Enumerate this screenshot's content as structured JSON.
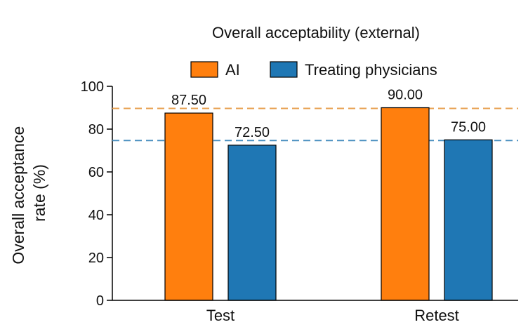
{
  "chart_data": {
    "type": "bar",
    "title": "Overall acceptability (external)",
    "categories": [
      "Test",
      "Retest"
    ],
    "series": [
      {
        "name": "AI",
        "values": [
          87.5,
          90.0
        ],
        "labels": [
          "87.50",
          "90.00"
        ],
        "color": "#ff7f0e"
      },
      {
        "name": "Treating physicians",
        "values": [
          72.5,
          75.0
        ],
        "labels": [
          "72.50",
          "75.00"
        ],
        "color": "#1f77b4"
      }
    ],
    "reference_lines": [
      {
        "series": "AI",
        "style": "dashed",
        "color": "#e8a050"
      },
      {
        "series": "Treating physicians",
        "style": "dashed",
        "color": "#4a8fc0"
      }
    ],
    "ylabel_lines": [
      "Overall acceptance",
      "rate (%)"
    ],
    "xlabel": "",
    "ylim": [
      0,
      100
    ],
    "yticks": [
      0,
      20,
      40,
      60,
      80,
      100
    ],
    "grid": false,
    "legend_position": "top"
  }
}
